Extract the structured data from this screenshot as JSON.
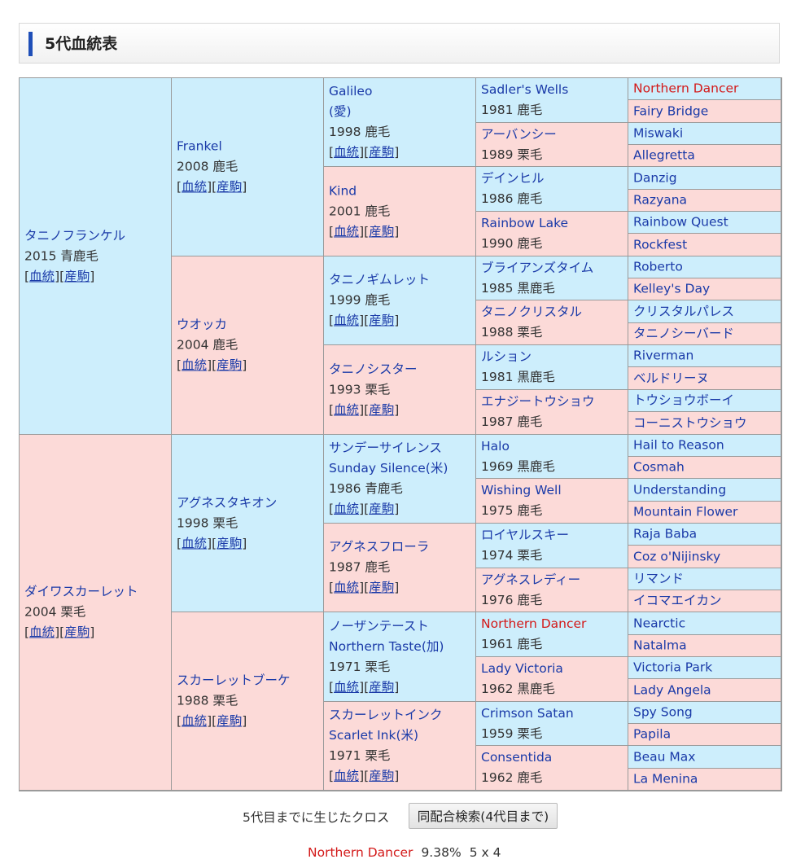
{
  "header": {
    "title": "5代血統表"
  },
  "links": {
    "pedigree": "血統",
    "offspring": "産駒"
  },
  "gen1": [
    {
      "name": "タニノフランケル",
      "year": "2015 青鹿毛",
      "sex": "m"
    },
    {
      "name": "ダイワスカーレット",
      "year": "2004 栗毛",
      "sex": "f"
    }
  ],
  "gen2": [
    {
      "name": "Frankel",
      "year": "2008 鹿毛",
      "sex": "m"
    },
    {
      "name": "ウオッカ",
      "year": "2004 鹿毛",
      "sex": "f"
    },
    {
      "name": "アグネスタキオン",
      "year": "1998 栗毛",
      "sex": "m"
    },
    {
      "name": "スカーレットブーケ",
      "year": "1988 栗毛",
      "sex": "f"
    }
  ],
  "gen3": [
    {
      "name": "Galileo",
      "name2": "(愛)",
      "year": "1998 鹿毛",
      "sex": "m"
    },
    {
      "name": "Kind",
      "year": "2001 鹿毛",
      "sex": "f"
    },
    {
      "name": "タニノギムレット",
      "year": "1999 鹿毛",
      "sex": "m"
    },
    {
      "name": "タニノシスター",
      "year": "1993 栗毛",
      "sex": "f"
    },
    {
      "name": "サンデーサイレンス",
      "name2": "Sunday Silence(米)",
      "year": "1986 青鹿毛",
      "sex": "m"
    },
    {
      "name": "アグネスフローラ",
      "year": "1987 鹿毛",
      "sex": "f"
    },
    {
      "name": "ノーザンテースト",
      "name2": "Northern Taste(加)",
      "year": "1971 栗毛",
      "sex": "m"
    },
    {
      "name": "スカーレットインク",
      "name2": "Scarlet Ink(米)",
      "year": "1971 栗毛",
      "sex": "f"
    }
  ],
  "gen4": [
    {
      "name": "Sadler's Wells",
      "year": "1981 鹿毛",
      "sex": "m"
    },
    {
      "name": "アーバンシー",
      "year": "1989 栗毛",
      "sex": "f"
    },
    {
      "name": "デインヒル",
      "year": "1986 鹿毛",
      "sex": "m"
    },
    {
      "name": "Rainbow Lake",
      "year": "1990 鹿毛",
      "sex": "f"
    },
    {
      "name": "ブライアンズタイム",
      "year": "1985 黒鹿毛",
      "sex": "m"
    },
    {
      "name": "タニノクリスタル",
      "year": "1988 栗毛",
      "sex": "f"
    },
    {
      "name": "ルション",
      "year": "1981 黒鹿毛",
      "sex": "m"
    },
    {
      "name": "エナジートウショウ",
      "year": "1987 鹿毛",
      "sex": "f"
    },
    {
      "name": "Halo",
      "year": "1969 黒鹿毛",
      "sex": "m"
    },
    {
      "name": "Wishing Well",
      "year": "1975 鹿毛",
      "sex": "f"
    },
    {
      "name": "ロイヤルスキー",
      "year": "1974 栗毛",
      "sex": "m"
    },
    {
      "name": "アグネスレディー",
      "year": "1976 鹿毛",
      "sex": "f"
    },
    {
      "name": "Northern Dancer",
      "year": "1961 鹿毛",
      "sex": "m",
      "cross": true
    },
    {
      "name": "Lady Victoria",
      "year": "1962 黒鹿毛",
      "sex": "f"
    },
    {
      "name": "Crimson Satan",
      "year": "1959 栗毛",
      "sex": "m"
    },
    {
      "name": "Consentida",
      "year": "1962 鹿毛",
      "sex": "f"
    }
  ],
  "gen5": [
    {
      "name": "Northern Dancer",
      "sex": "m",
      "cross": true
    },
    {
      "name": "Fairy Bridge",
      "sex": "f"
    },
    {
      "name": "Miswaki",
      "sex": "m"
    },
    {
      "name": "Allegretta",
      "sex": "f"
    },
    {
      "name": "Danzig",
      "sex": "m"
    },
    {
      "name": "Razyana",
      "sex": "f"
    },
    {
      "name": "Rainbow Quest",
      "sex": "m"
    },
    {
      "name": "Rockfest",
      "sex": "f"
    },
    {
      "name": "Roberto",
      "sex": "m"
    },
    {
      "name": "Kelley's Day",
      "sex": "f"
    },
    {
      "name": "クリスタルパレス",
      "sex": "m"
    },
    {
      "name": "タニノシーバード",
      "sex": "f"
    },
    {
      "name": "Riverman",
      "sex": "m"
    },
    {
      "name": "ベルドリーヌ",
      "sex": "f"
    },
    {
      "name": "トウショウボーイ",
      "sex": "m"
    },
    {
      "name": "コーニストウショウ",
      "sex": "f"
    },
    {
      "name": "Hail to Reason",
      "sex": "m"
    },
    {
      "name": "Cosmah",
      "sex": "f"
    },
    {
      "name": "Understanding",
      "sex": "m"
    },
    {
      "name": "Mountain Flower",
      "sex": "f"
    },
    {
      "name": "Raja Baba",
      "sex": "m"
    },
    {
      "name": "Coz o'Nijinsky",
      "sex": "f"
    },
    {
      "name": "リマンド",
      "sex": "m"
    },
    {
      "name": "イコマエイカン",
      "sex": "f"
    },
    {
      "name": "Nearctic",
      "sex": "m"
    },
    {
      "name": "Natalma",
      "sex": "f"
    },
    {
      "name": "Victoria Park",
      "sex": "m"
    },
    {
      "name": "Lady Angela",
      "sex": "f"
    },
    {
      "name": "Spy Song",
      "sex": "m"
    },
    {
      "name": "Papila",
      "sex": "f"
    },
    {
      "name": "Beau Max",
      "sex": "m"
    },
    {
      "name": "La Menina",
      "sex": "f"
    }
  ],
  "footer": {
    "cross_label": "5代目までに生じたクロス",
    "search_button": "同配合検索(4代目まで)",
    "cross": {
      "name": "Northern Dancer",
      "percent": "9.38%",
      "expr": "5 x 4"
    }
  }
}
